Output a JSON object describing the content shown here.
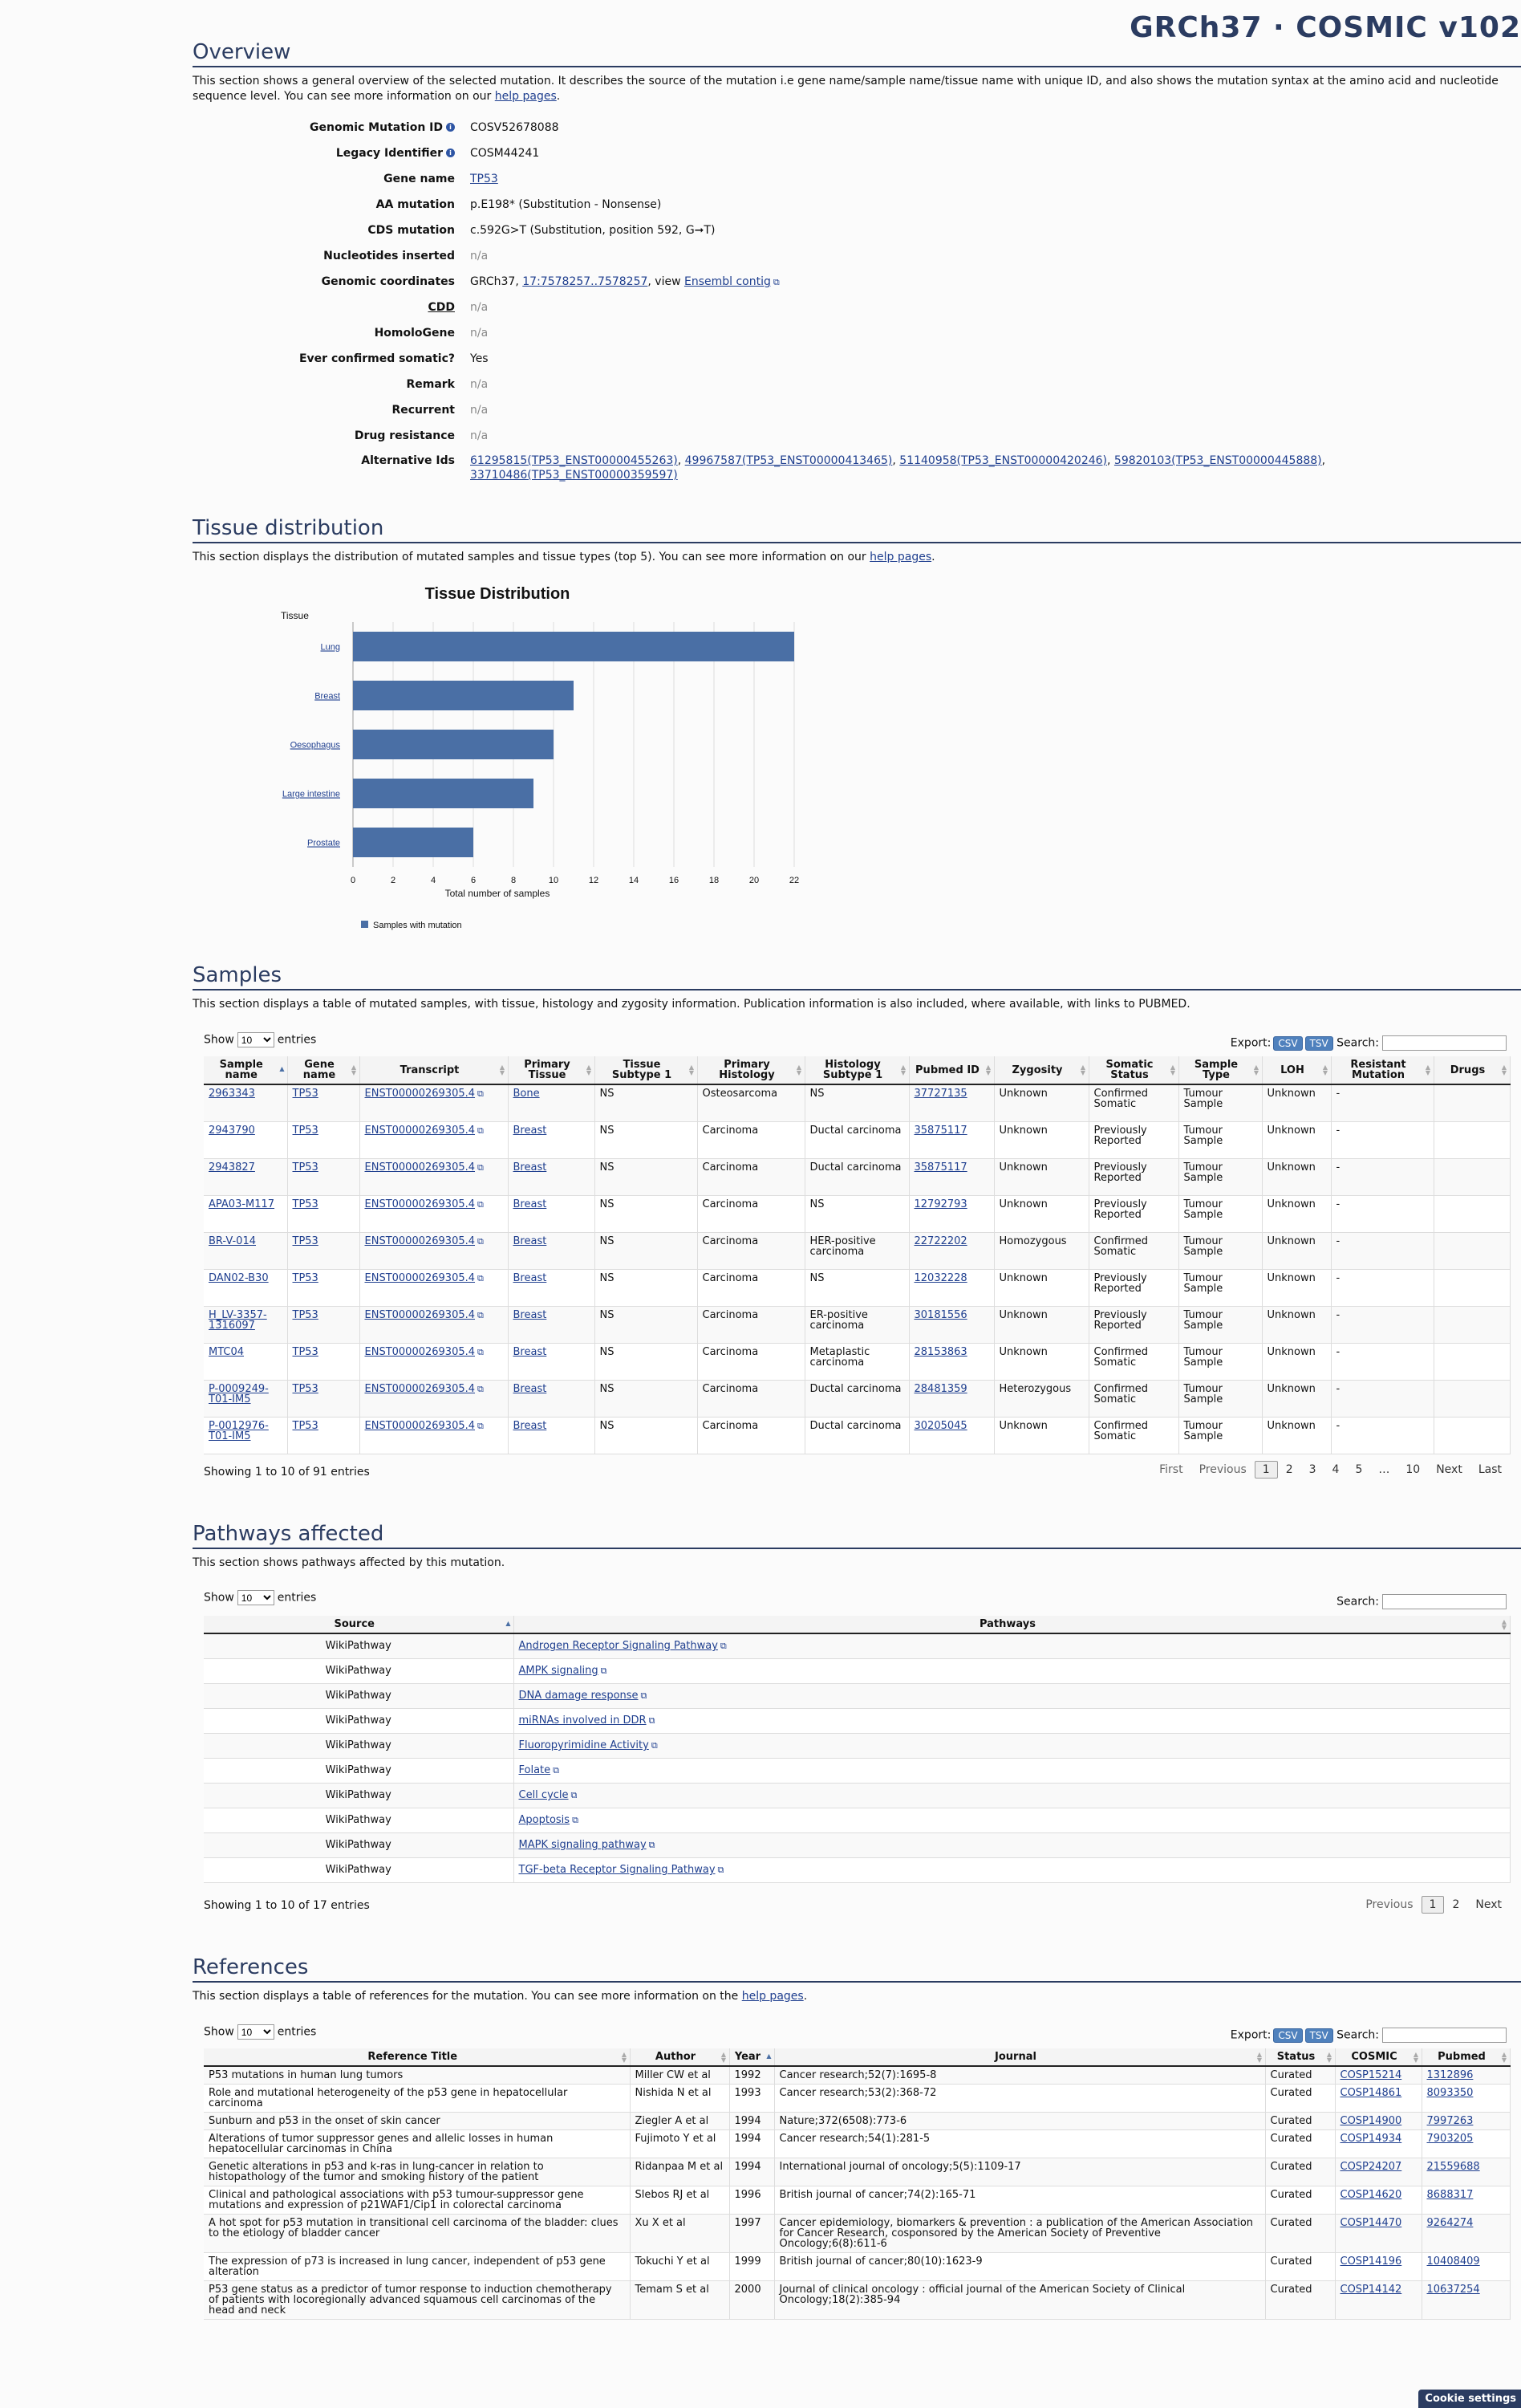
{
  "brand": "GRCh37 · COSMIC v102",
  "overview": {
    "title": "Overview",
    "desc_pre": "This section shows a general overview of the selected mutation. It describes the source of the mutation i.e gene name/sample name/tissue name with unique ID, and also shows the mutation syntax at the amino acid and nucleotide sequence level. You can see more information on our ",
    "desc_link": "help pages",
    "desc_post": ".",
    "rows": [
      {
        "label": "Genomic Mutation ID",
        "info": true,
        "value": "COSV52678088"
      },
      {
        "label": "Legacy Identifier",
        "info": true,
        "value": "COSM44241"
      },
      {
        "label": "Gene name",
        "link": "TP53"
      },
      {
        "label": "AA mutation",
        "value": "p.E198* (Substitution - Nonsense)"
      },
      {
        "label": "CDS mutation",
        "value": "c.592G>T (Substitution, position 592, G➞T)"
      },
      {
        "label": "Nucleotides inserted",
        "na": "n/a"
      },
      {
        "label": "Genomic coordinates",
        "pre": "GRCh37, ",
        "link1": "17:7578257..7578257",
        "mid": ", view ",
        "link2": "Ensembl contig"
      },
      {
        "label": "CDD",
        "na": "n/a",
        "underline": true
      },
      {
        "label": "HomoloGene",
        "na": "n/a"
      },
      {
        "label": "Ever confirmed somatic?",
        "value": "Yes"
      },
      {
        "label": "Remark",
        "na": "n/a"
      },
      {
        "label": "Recurrent",
        "na": "n/a"
      },
      {
        "label": "Drug resistance",
        "na": "n/a"
      },
      {
        "label": "Alternative Ids",
        "alts": [
          "61295815(TP53_ENST00000455263)",
          "49967587(TP53_ENST00000413465)",
          "51140958(TP53_ENST00000420246)",
          "59820103(TP53_ENST00000445888)",
          "33710486(TP53_ENST00000359597)"
        ]
      }
    ]
  },
  "tissue": {
    "title": "Tissue distribution",
    "desc_pre": "This section displays the distribution of mutated samples and tissue types (top 5). You can see more information on our ",
    "desc_link": "help pages",
    "desc_post": ".",
    "chart_data": {
      "type": "bar",
      "orientation": "horizontal",
      "title": "Tissue Distribution",
      "ylabel": "Tissue",
      "xlabel": "Total number of samples",
      "categories": [
        "Lung",
        "Breast",
        "Oesophagus",
        "Large intestine",
        "Prostate"
      ],
      "series": [
        {
          "name": "Samples with mutation",
          "values": [
            22,
            11,
            10,
            9,
            6
          ],
          "color": "#4a6fa5"
        }
      ],
      "xlim": [
        0,
        22
      ],
      "xticks": [
        0,
        2,
        4,
        6,
        8,
        10,
        12,
        14,
        16,
        18,
        20,
        22
      ],
      "grid": true,
      "legend": "bottom-left"
    }
  },
  "samples": {
    "title": "Samples",
    "desc": "This section displays a table of mutated samples, with tissue, histology and zygosity information. Publication information is also included, where available, with links to PUBMED.",
    "show": "Show",
    "entries": "entries",
    "len": "10",
    "export": "Export:",
    "csv": "CSV",
    "tsv": "TSV",
    "search": "Search:",
    "columns": [
      "Sample name",
      "Gene name",
      "Transcript",
      "Primary Tissue",
      "Tissue Subtype 1",
      "Primary Histology",
      "Histology Subtype 1",
      "Pubmed ID",
      "Zygosity",
      "Somatic Status",
      "Sample Type",
      "LOH",
      "Resistant Mutation",
      "Drugs"
    ],
    "rows": [
      [
        "2963343",
        "TP53",
        "ENST00000269305.4",
        "Bone",
        "NS",
        "Osteosarcoma",
        "NS",
        "37727135",
        "Unknown",
        "Confirmed Somatic",
        "Tumour Sample",
        "Unknown",
        "-",
        ""
      ],
      [
        "2943790",
        "TP53",
        "ENST00000269305.4",
        "Breast",
        "NS",
        "Carcinoma",
        "Ductal carcinoma",
        "35875117",
        "Unknown",
        "Previously Reported",
        "Tumour Sample",
        "Unknown",
        "-",
        ""
      ],
      [
        "2943827",
        "TP53",
        "ENST00000269305.4",
        "Breast",
        "NS",
        "Carcinoma",
        "Ductal carcinoma",
        "35875117",
        "Unknown",
        "Previously Reported",
        "Tumour Sample",
        "Unknown",
        "-",
        ""
      ],
      [
        "APA03-M117",
        "TP53",
        "ENST00000269305.4",
        "Breast",
        "NS",
        "Carcinoma",
        "NS",
        "12792793",
        "Unknown",
        "Previously Reported",
        "Tumour Sample",
        "Unknown",
        "-",
        ""
      ],
      [
        "BR-V-014",
        "TP53",
        "ENST00000269305.4",
        "Breast",
        "NS",
        "Carcinoma",
        "HER-positive carcinoma",
        "22722202",
        "Homozygous",
        "Confirmed Somatic",
        "Tumour Sample",
        "Unknown",
        "-",
        ""
      ],
      [
        "DAN02-B30",
        "TP53",
        "ENST00000269305.4",
        "Breast",
        "NS",
        "Carcinoma",
        "NS",
        "12032228",
        "Unknown",
        "Previously Reported",
        "Tumour Sample",
        "Unknown",
        "-",
        ""
      ],
      [
        "H_LV-3357-1316097",
        "TP53",
        "ENST00000269305.4",
        "Breast",
        "NS",
        "Carcinoma",
        "ER-positive carcinoma",
        "30181556",
        "Unknown",
        "Previously Reported",
        "Tumour Sample",
        "Unknown",
        "-",
        ""
      ],
      [
        "MTC04",
        "TP53",
        "ENST00000269305.4",
        "Breast",
        "NS",
        "Carcinoma",
        "Metaplastic carcinoma",
        "28153863",
        "Unknown",
        "Confirmed Somatic",
        "Tumour Sample",
        "Unknown",
        "-",
        ""
      ],
      [
        "P-0009249-T01-IM5",
        "TP53",
        "ENST00000269305.4",
        "Breast",
        "NS",
        "Carcinoma",
        "Ductal carcinoma",
        "28481359",
        "Heterozygous",
        "Confirmed Somatic",
        "Tumour Sample",
        "Unknown",
        "-",
        ""
      ],
      [
        "P-0012976-T01-IM5",
        "TP53",
        "ENST00000269305.4",
        "Breast",
        "NS",
        "Carcinoma",
        "Ductal carcinoma",
        "30205045",
        "Unknown",
        "Confirmed Somatic",
        "Tumour Sample",
        "Unknown",
        "-",
        ""
      ]
    ],
    "info": "Showing 1 to 10 of 91 entries",
    "pager": [
      "First",
      "Previous",
      "1",
      "2",
      "3",
      "4",
      "5",
      "…",
      "10",
      "Next",
      "Last"
    ]
  },
  "pathways": {
    "title": "Pathways affected",
    "desc": "This section shows pathways affected by this mutation.",
    "show": "Show",
    "entries": "entries",
    "len": "10",
    "search": "Search:",
    "columns": [
      "Source",
      "Pathways"
    ],
    "rows": [
      [
        "WikiPathway",
        "Androgen Receptor Signaling Pathway"
      ],
      [
        "WikiPathway",
        "AMPK signaling"
      ],
      [
        "WikiPathway",
        "DNA damage response"
      ],
      [
        "WikiPathway",
        "miRNAs involved in DDR"
      ],
      [
        "WikiPathway",
        "Fluoropyrimidine Activity"
      ],
      [
        "WikiPathway",
        "Folate"
      ],
      [
        "WikiPathway",
        "Cell cycle"
      ],
      [
        "WikiPathway",
        "Apoptosis"
      ],
      [
        "WikiPathway",
        "MAPK signaling pathway"
      ],
      [
        "WikiPathway",
        "TGF-beta Receptor Signaling Pathway"
      ]
    ],
    "info": "Showing 1 to 10 of 17 entries",
    "pager": [
      "Previous",
      "1",
      "2",
      "Next"
    ]
  },
  "references": {
    "title": "References",
    "desc_pre": "This section displays a table of references for the mutation. You can see more information on the ",
    "desc_link": "help pages",
    "desc_post": ".",
    "show": "Show",
    "entries": "entries",
    "len": "10",
    "export": "Export:",
    "csv": "CSV",
    "tsv": "TSV",
    "search": "Search:",
    "columns": [
      "Reference Title",
      "Author",
      "Year",
      "Journal",
      "Status",
      "COSMIC",
      "Pubmed"
    ],
    "rows": [
      [
        "P53 mutations in human lung tumors",
        "Miller CW et al",
        "1992",
        "Cancer research;52(7):1695-8",
        "Curated",
        "COSP15214",
        "1312896"
      ],
      [
        "Role and mutational heterogeneity of the p53 gene in hepatocellular carcinoma",
        "Nishida N et al",
        "1993",
        "Cancer research;53(2):368-72",
        "Curated",
        "COSP14861",
        "8093350"
      ],
      [
        "Sunburn and p53 in the onset of skin cancer",
        "Ziegler A et al",
        "1994",
        "Nature;372(6508):773-6",
        "Curated",
        "COSP14900",
        "7997263"
      ],
      [
        "Alterations of tumor suppressor genes and allelic losses in human hepatocellular carcinomas in China",
        "Fujimoto Y et al",
        "1994",
        "Cancer research;54(1):281-5",
        "Curated",
        "COSP14934",
        "7903205"
      ],
      [
        "Genetic alterations in p53 and k-ras in lung-cancer in relation to histopathology of the tumor and smoking history of the patient",
        "Ridanpaa M et al",
        "1994",
        "International journal of oncology;5(5):1109-17",
        "Curated",
        "COSP24207",
        "21559688"
      ],
      [
        "Clinical and pathological associations with p53 tumour-suppressor gene mutations and expression of p21WAF1/Cip1 in colorectal carcinoma",
        "Slebos RJ et al",
        "1996",
        "British journal of cancer;74(2):165-71",
        "Curated",
        "COSP14620",
        "8688317"
      ],
      [
        "A hot spot for p53 mutation in transitional cell carcinoma of the bladder: clues to the etiology of bladder cancer",
        "Xu X et al",
        "1997",
        "Cancer epidemiology, biomarkers & prevention : a publication of the American Association for Cancer Research, cosponsored by the American Society of Preventive Oncology;6(8):611-6",
        "Curated",
        "COSP14470",
        "9264274"
      ],
      [
        "The expression of p73 is increased in lung cancer, independent of p53 gene alteration",
        "Tokuchi Y et al",
        "1999",
        "British journal of cancer;80(10):1623-9",
        "Curated",
        "COSP14196",
        "10408409"
      ],
      [
        "P53 gene status as a predictor of tumor response to induction chemotherapy of patients with locoregionally advanced squamous cell carcinomas of the head and neck",
        "Temam S et al",
        "2000",
        "Journal of clinical oncology : official journal of the American Society of Clinical Oncology;18(2):385-94",
        "Curated",
        "COSP14142",
        "10637254"
      ]
    ]
  },
  "cookie": "Cookie settings"
}
